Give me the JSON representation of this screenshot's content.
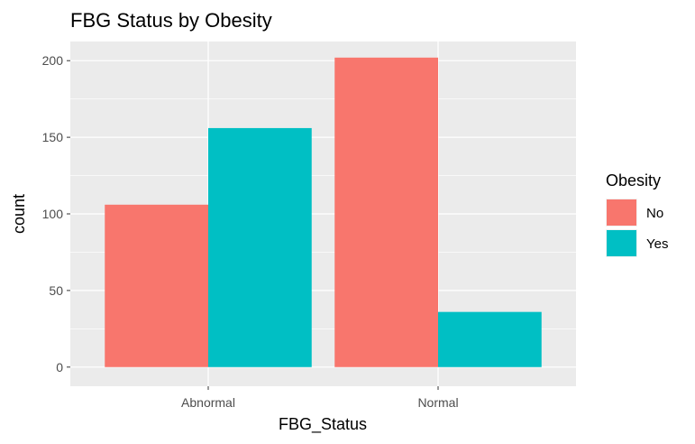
{
  "chart_data": {
    "type": "bar",
    "title": "FBG Status by Obesity",
    "xlabel": "FBG_Status",
    "ylabel": "count",
    "categories": [
      "Abnormal",
      "Normal"
    ],
    "series": [
      {
        "name": "No",
        "color": "#F8766D",
        "values": [
          106,
          202
        ]
      },
      {
        "name": "Yes",
        "color": "#00BFC4",
        "values": [
          156,
          36
        ]
      }
    ],
    "ylim": [
      -12.5,
      212.5
    ],
    "yticks": [
      0,
      50,
      100,
      150,
      200
    ],
    "ytick_labels": [
      "0",
      "50",
      "100",
      "150",
      "200"
    ],
    "grid": true,
    "legend": {
      "title": "Obesity",
      "position": "right"
    },
    "panel_background": "#EBEBEB"
  }
}
